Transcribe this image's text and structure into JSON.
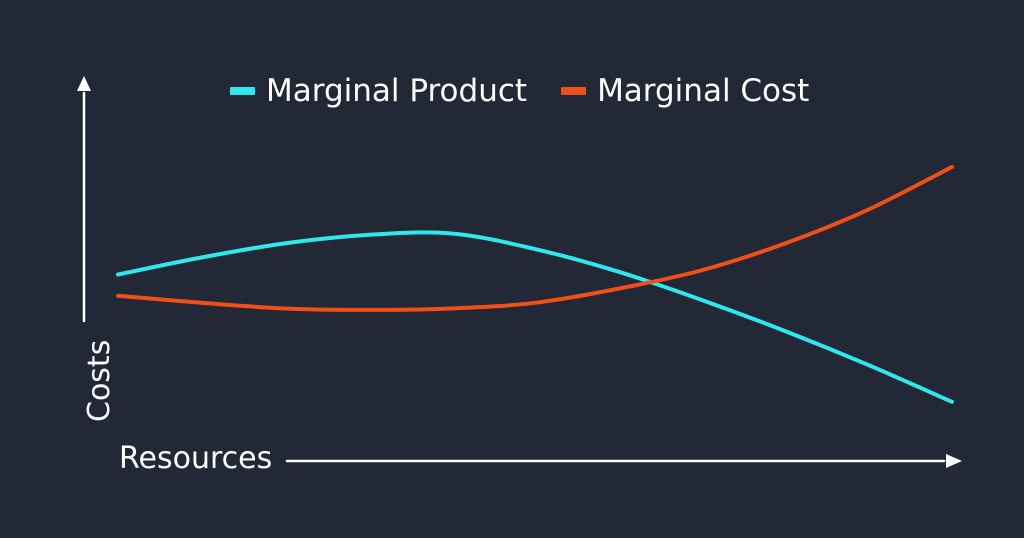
{
  "chart_data": {
    "type": "line",
    "title": "",
    "xlabel": "Resources",
    "ylabel": "Costs",
    "xlim": [
      0,
      10
    ],
    "ylim": [
      0,
      10
    ],
    "grid": false,
    "legend": "top-center",
    "x": [
      0,
      1,
      2,
      3,
      4,
      5,
      6,
      7,
      8,
      9,
      10
    ],
    "series": [
      {
        "name": "Marginal Product",
        "color": "#2ee8ec",
        "values": [
          5.0,
          5.6,
          6.1,
          6.4,
          6.45,
          5.9,
          5.1,
          4.1,
          3.0,
          1.8,
          0.5
        ]
      },
      {
        "name": "Marginal Cost",
        "color": "#f04f18",
        "values": [
          4.25,
          4.0,
          3.8,
          3.75,
          3.8,
          4.0,
          4.5,
          5.15,
          6.1,
          7.3,
          8.8
        ]
      }
    ]
  },
  "axes": {
    "x_label": "Resources",
    "y_label": "Costs",
    "color": "#ffffff"
  },
  "legend": {
    "items": [
      {
        "label": "Marginal Product",
        "color": "#2ee8ec"
      },
      {
        "label": "Marginal Cost",
        "color": "#f04f18"
      }
    ]
  },
  "colors": {
    "background": "#222836",
    "axis": "#ffffff"
  }
}
